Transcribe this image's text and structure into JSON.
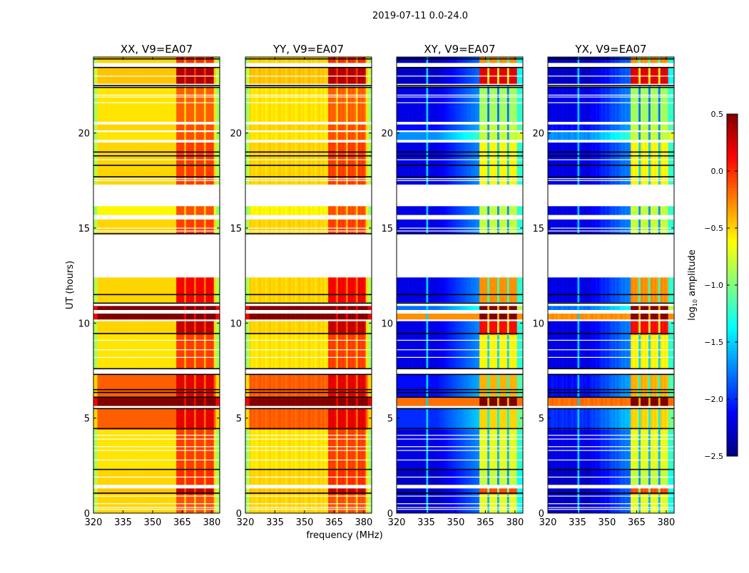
{
  "chart_data": {
    "type": "heatmap",
    "title": "2019-07-11 0.0-24.0",
    "xlabel": "frequency (MHz)",
    "ylabel": "UT (hours)",
    "xlim": [
      320,
      384
    ],
    "ylim": [
      0,
      24
    ],
    "xticks": [
      "320",
      "335",
      "350",
      "365",
      "380"
    ],
    "xtick_values": [
      320,
      335,
      350,
      365,
      380
    ],
    "yticks": [
      "0",
      "5",
      "10",
      "15",
      "20"
    ],
    "ytick_values": [
      0,
      5,
      10,
      15,
      20
    ],
    "colormap": "jet",
    "colorbar": {
      "label": "log10 amplitude",
      "label_main": "log",
      "label_sub": "10",
      "label_rest": " amplitude",
      "range": [
        -2.5,
        0.5
      ],
      "ticks": [
        "0.5",
        "0.0",
        "−0.5",
        "−1.0",
        "−1.5",
        "−2.0",
        "−2.5"
      ],
      "tick_values": [
        0.5,
        0.0,
        -0.5,
        -1.0,
        -1.5,
        -2.0,
        -2.5
      ]
    },
    "panels": [
      {
        "title": "XX, V9=EA07",
        "pol": "co"
      },
      {
        "title": "YY, V9=EA07",
        "pol": "co"
      },
      {
        "title": "XY, V9=EA07",
        "pol": "cross"
      },
      {
        "title": "YX, V9=EA07",
        "pol": "cross"
      }
    ],
    "rfi_band_mhz": [
      362,
      381
    ],
    "rfi_gap_channels_mhz": [
      366,
      371,
      376
    ],
    "note_values": "segments give log10 amplitude [band-base, rfi-band] per polarisation type; null = flagged (blank)",
    "segments": [
      {
        "t": [
          0.0,
          1.0
        ],
        "co": [
          -0.5,
          -0.1
        ],
        "cross": [
          -2.3,
          -0.7
        ]
      },
      {
        "t": [
          1.0,
          1.3
        ],
        "co": [
          -0.45,
          0.3
        ],
        "cross": [
          -2.3,
          -0.1
        ]
      },
      {
        "t": [
          1.3,
          1.5
        ],
        "co": null,
        "cross": null
      },
      {
        "t": [
          1.5,
          2.3
        ],
        "co": [
          -0.5,
          0.0
        ],
        "cross": [
          -2.3,
          -0.8
        ]
      },
      {
        "t": [
          2.3,
          4.4
        ],
        "co": [
          -0.55,
          -0.05
        ],
        "cross": [
          -2.2,
          -0.7
        ]
      },
      {
        "t": [
          4.4,
          5.5
        ],
        "co": [
          -0.15,
          0.2
        ],
        "cross": [
          -2.0,
          -0.5
        ]
      },
      {
        "t": [
          5.5,
          5.65
        ],
        "co": null,
        "cross": null
      },
      {
        "t": [
          5.65,
          6.1
        ],
        "co": [
          0.5,
          0.5
        ],
        "cross": [
          -0.2,
          0.5
        ]
      },
      {
        "t": [
          6.1,
          7.3
        ],
        "co": [
          -0.15,
          0.2
        ],
        "cross": [
          -2.1,
          -0.4
        ]
      },
      {
        "t": [
          7.3,
          7.6
        ],
        "co": null,
        "cross": null
      },
      {
        "t": [
          7.6,
          9.4
        ],
        "co": [
          -0.55,
          -0.05
        ],
        "cross": [
          -2.2,
          -0.6
        ]
      },
      {
        "t": [
          9.4,
          10.1
        ],
        "co": [
          -0.5,
          0.3
        ],
        "cross": [
          -2.2,
          0.1
        ]
      },
      {
        "t": [
          10.1,
          10.2
        ],
        "co": null,
        "cross": null
      },
      {
        "t": [
          10.2,
          10.5
        ],
        "co": [
          0.5,
          0.5
        ],
        "cross": [
          -0.3,
          0.5
        ]
      },
      {
        "t": [
          10.5,
          10.7
        ],
        "co": null,
        "cross": null
      },
      {
        "t": [
          10.7,
          10.9
        ],
        "co": [
          0.5,
          0.5
        ],
        "cross": [
          -1.8,
          0.5
        ]
      },
      {
        "t": [
          10.9,
          11.1
        ],
        "co": null,
        "cross": null
      },
      {
        "t": [
          11.1,
          12.4
        ],
        "co": [
          -0.5,
          0.15
        ],
        "cross": [
          -2.2,
          -0.3
        ]
      },
      {
        "t": [
          12.4,
          14.7
        ],
        "co": null,
        "cross": null
      },
      {
        "t": [
          14.7,
          15.45
        ],
        "co": [
          -0.5,
          -0.05
        ],
        "cross": [
          -2.2,
          -0.8
        ]
      },
      {
        "t": [
          15.45,
          15.7
        ],
        "co": null,
        "cross": null
      },
      {
        "t": [
          15.7,
          16.15
        ],
        "co": [
          -0.6,
          -0.1
        ],
        "cross": [
          -2.2,
          -0.8
        ]
      },
      {
        "t": [
          16.15,
          17.3
        ],
        "co": null,
        "cross": null
      },
      {
        "t": [
          17.3,
          19.5
        ],
        "co": [
          -0.5,
          -0.05
        ],
        "cross": [
          -2.2,
          -0.6
        ]
      },
      {
        "t": [
          19.5,
          19.65
        ],
        "co": null,
        "cross": null
      },
      {
        "t": [
          19.65,
          20.05
        ],
        "co": [
          -0.55,
          -0.1
        ],
        "cross": [
          -1.7,
          -0.8
        ]
      },
      {
        "t": [
          20.05,
          20.15
        ],
        "co": null,
        "cross": null
      },
      {
        "t": [
          20.15,
          20.45
        ],
        "co": [
          -0.5,
          -0.1
        ],
        "cross": [
          -2.1,
          -0.8
        ]
      },
      {
        "t": [
          20.45,
          20.6
        ],
        "co": null,
        "cross": null
      },
      {
        "t": [
          20.6,
          22.45
        ],
        "co": [
          -0.55,
          -0.15
        ],
        "cross": [
          -2.2,
          -0.9
        ]
      },
      {
        "t": [
          22.45,
          22.6
        ],
        "co": null,
        "cross": null
      },
      {
        "t": [
          22.6,
          23.45
        ],
        "co": [
          -0.45,
          0.35
        ],
        "cross": [
          -2.3,
          0.2
        ]
      },
      {
        "t": [
          23.45,
          23.7
        ],
        "co": null,
        "cross": null
      },
      {
        "t": [
          23.7,
          24.0
        ],
        "co": [
          -0.5,
          0.0
        ],
        "cross": [
          -2.3,
          -0.3
        ]
      }
    ],
    "black_lines_hours": [
      1.05,
      2.3,
      4.45,
      5.5,
      6.1,
      6.35,
      6.5,
      7.3,
      7.6,
      9.45,
      11.05,
      11.5,
      14.7,
      17.7,
      18.3,
      18.8,
      19.0,
      22.4,
      22.5,
      23.45,
      23.9
    ],
    "white_lines_hours": [
      0.2,
      0.3,
      0.5,
      0.9,
      1.9,
      2.8,
      3.3,
      3.5,
      3.9,
      4.1,
      8.2,
      8.6,
      9.1,
      14.85,
      15.0,
      17.5,
      17.6,
      18.6,
      21.6,
      21.9,
      22.0,
      23.0
    ]
  }
}
